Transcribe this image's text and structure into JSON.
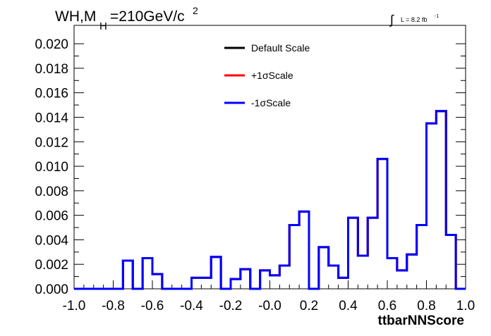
{
  "chart_data": {
    "type": "line",
    "title_main": "WH,M",
    "title_sub": "H",
    "title_rest": "=210GeV/c",
    "title_sup": "2",
    "lumi_text": "L = 8.2 fb",
    "lumi_sup": "-1",
    "xlabel": "ttbarNNScore",
    "xlim": [
      -1.0,
      1.0
    ],
    "ylim": [
      0.0,
      0.0215
    ],
    "x_ticks": [
      "-1.0",
      "-0.8",
      "-0.6",
      "-0.4",
      "-0.2",
      "-0.0",
      "0.2",
      "0.4",
      "0.6",
      "0.8",
      "1.0"
    ],
    "y_ticks": [
      "0.000",
      "0.002",
      "0.004",
      "0.006",
      "0.008",
      "0.010",
      "0.012",
      "0.014",
      "0.016",
      "0.018",
      "0.020"
    ],
    "bin_edges": [
      -1.0,
      -0.95,
      -0.9,
      -0.85,
      -0.8,
      -0.75,
      -0.7,
      -0.65,
      -0.6,
      -0.55,
      -0.5,
      -0.45,
      -0.4,
      -0.35,
      -0.3,
      -0.25,
      -0.2,
      -0.15,
      -0.1,
      -0.05,
      0.0,
      0.05,
      0.1,
      0.15,
      0.2,
      0.25,
      0.3,
      0.35,
      0.4,
      0.45,
      0.5,
      0.55,
      0.6,
      0.65,
      0.7,
      0.75,
      0.8,
      0.85,
      0.9,
      0.95,
      1.0
    ],
    "series": [
      {
        "name": "Default Scale",
        "color": "#000000",
        "values": [
          0,
          0,
          0,
          0,
          0,
          0.0023,
          0,
          0.0025,
          0.0012,
          0,
          0,
          0,
          0.0009,
          0.0009,
          0.0026,
          0,
          0.0008,
          0.0016,
          0,
          0.0015,
          0.0011,
          0.0019,
          0.0052,
          0.0063,
          0,
          0.0034,
          0.0019,
          0.0009,
          0.0058,
          0.0027,
          0.0058,
          0.0106,
          0.0025,
          0.0015,
          0.0028,
          0.0052,
          0.0135,
          0.0145,
          0.0044,
          0
        ]
      },
      {
        "name": "+1σScale",
        "color": "#ff0000",
        "values": [
          0,
          0,
          0,
          0,
          0,
          0.0023,
          0,
          0.0025,
          0.0012,
          0,
          0,
          0,
          0.0009,
          0.0009,
          0.0026,
          0,
          0.0008,
          0.0016,
          0,
          0.0015,
          0.0011,
          0.0019,
          0.0052,
          0.0063,
          0,
          0.0034,
          0.0019,
          0.0009,
          0.0058,
          0.0027,
          0.0058,
          0.0106,
          0.0025,
          0.0015,
          0.0028,
          0.0052,
          0.0135,
          0.0145,
          0.0044,
          0
        ]
      },
      {
        "name": "-1σScale",
        "color": "#0000ff",
        "values": [
          0,
          0,
          0,
          0,
          0,
          0.0023,
          0,
          0.0025,
          0.0012,
          0,
          0,
          0,
          0.0009,
          0.0009,
          0.0026,
          0,
          0.0008,
          0.0016,
          0,
          0.0015,
          0.0011,
          0.0019,
          0.0052,
          0.0063,
          0,
          0.0034,
          0.0019,
          0.0009,
          0.0058,
          0.0027,
          0.0058,
          0.0106,
          0.0025,
          0.0015,
          0.0028,
          0.0052,
          0.0135,
          0.0145,
          0.0044,
          0
        ]
      }
    ],
    "legend_position": "top-center",
    "grid": false
  }
}
